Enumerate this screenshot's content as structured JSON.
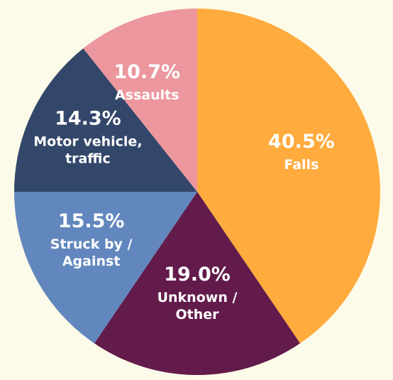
{
  "chart_data": {
    "type": "pie",
    "start": "12 o'clock",
    "direction": "clockwise",
    "slices": [
      {
        "percent": 40.5,
        "pct_text": "40.5%",
        "label_lines": [
          "Falls"
        ],
        "color": "#ffab3d"
      },
      {
        "percent": 19.0,
        "pct_text": "19.0%",
        "label_lines": [
          "Unknown /",
          "Other"
        ],
        "color": "#621b4b"
      },
      {
        "percent": 15.5,
        "pct_text": "15.5%",
        "label_lines": [
          "Struck by /",
          "Against"
        ],
        "color": "#6287be"
      },
      {
        "percent": 14.3,
        "pct_text": "14.3%",
        "label_lines": [
          "Motor vehicle,",
          "traffic"
        ],
        "color": "#33476a"
      },
      {
        "percent": 10.7,
        "pct_text": "10.7%",
        "label_lines": [
          "Assaults"
        ],
        "color": "#ec969d"
      }
    ]
  }
}
